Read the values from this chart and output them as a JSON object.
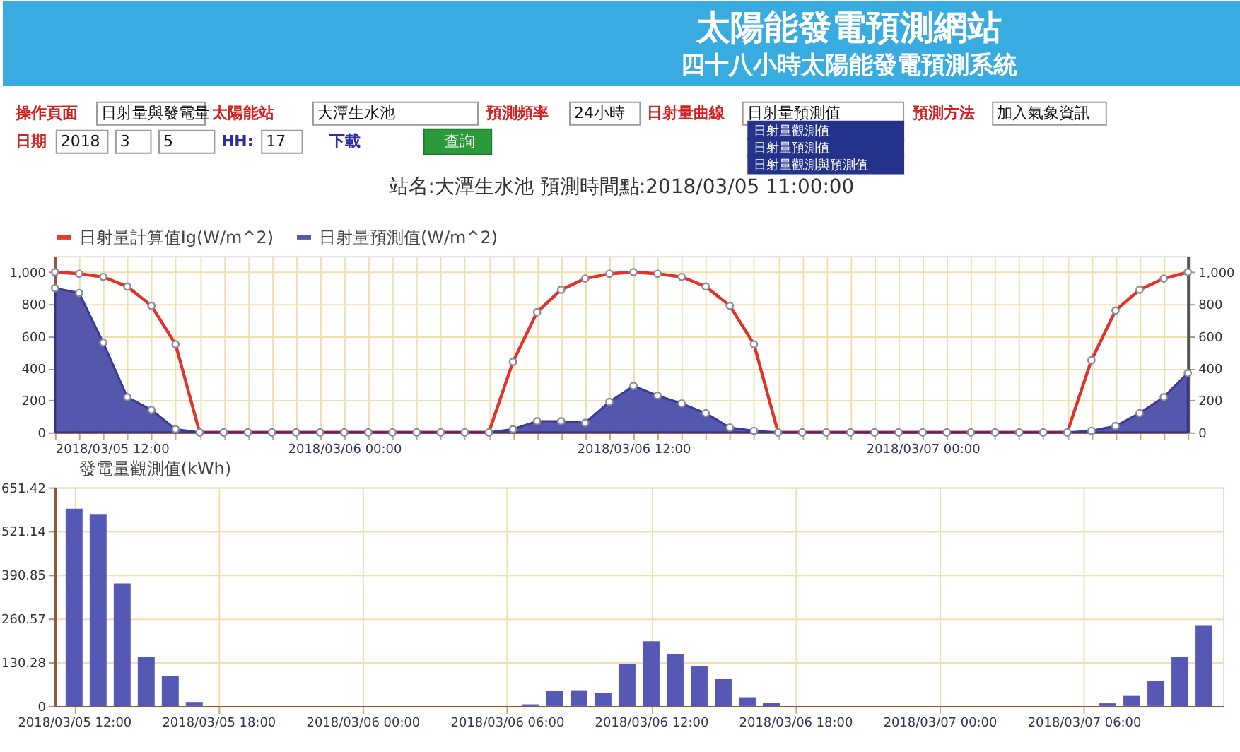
{
  "chart_data": [
    {
      "type": "other",
      "title": "太陽能發電預測網站",
      "subtitle": "四十八小時太陽能發電預測系統",
      "annotations": [
        "操作頁面",
        "日射量與發電量",
        "太陽能站",
        "大潭生水池",
        "預測頻率",
        "24小時",
        "日射量曲線",
        "日射量預測值",
        "預測方法",
        "加入氣象資訊",
        "日期",
        "2018",
        "3",
        "5",
        "HH:",
        "17",
        "下載",
        "查詢",
        "日射量觀測值",
        "日射量預測值",
        "日射量觀測與預測值"
      ]
    },
    {
      "type": "line",
      "title": "站名:大潭生水池 預測時間點:2018/03/05 11:00:00",
      "x": [
        "2018-03-05T12:00",
        "2018-03-05T13:00",
        "2018-03-05T14:00",
        "2018-03-05T15:00",
        "2018-03-05T16:00",
        "2018-03-05T17:00",
        "2018-03-05T18:00",
        "2018-03-05T19:00",
        "2018-03-05T20:00",
        "2018-03-05T21:00",
        "2018-03-05T22:00",
        "2018-03-05T23:00",
        "2018-03-06T00:00",
        "2018-03-06T01:00",
        "2018-03-06T02:00",
        "2018-03-06T03:00",
        "2018-03-06T04:00",
        "2018-03-06T05:00",
        "2018-03-06T06:00",
        "2018-03-06T07:00",
        "2018-03-06T08:00",
        "2018-03-06T09:00",
        "2018-03-06T10:00",
        "2018-03-06T11:00",
        "2018-03-06T12:00",
        "2018-03-06T13:00",
        "2018-03-06T14:00",
        "2018-03-06T15:00",
        "2018-03-06T16:00",
        "2018-03-06T17:00",
        "2018-03-06T18:00",
        "2018-03-06T19:00",
        "2018-03-06T20:00",
        "2018-03-06T21:00",
        "2018-03-06T22:00",
        "2018-03-06T23:00",
        "2018-03-07T00:00",
        "2018-03-07T01:00",
        "2018-03-07T02:00",
        "2018-03-07T03:00",
        "2018-03-07T04:00",
        "2018-03-07T05:00",
        "2018-03-07T06:00",
        "2018-03-07T07:00",
        "2018-03-07T08:00",
        "2018-03-07T09:00",
        "2018-03-07T10:00",
        "2018-03-07T11:00"
      ],
      "series": [
        {
          "name": "日射量計算值Ig(W/m^2)",
          "color": "#e0332b",
          "type": "line",
          "values": [
            1000,
            990,
            970,
            910,
            790,
            550,
            0,
            0,
            0,
            0,
            0,
            0,
            0,
            0,
            0,
            0,
            0,
            0,
            0,
            440,
            750,
            890,
            960,
            990,
            1000,
            990,
            970,
            910,
            790,
            550,
            0,
            0,
            0,
            0,
            0,
            0,
            0,
            0,
            0,
            0,
            0,
            0,
            0,
            450,
            760,
            890,
            960,
            1000
          ]
        },
        {
          "name": "日射量預測值(W/m^2)",
          "color": "#4b4fa8",
          "type": "area",
          "values": [
            900,
            870,
            560,
            220,
            140,
            20,
            0,
            0,
            0,
            0,
            0,
            0,
            0,
            0,
            0,
            0,
            0,
            0,
            0,
            20,
            70,
            70,
            60,
            190,
            290,
            230,
            180,
            120,
            30,
            10,
            0,
            0,
            0,
            0,
            0,
            0,
            0,
            0,
            0,
            0,
            0,
            0,
            0,
            10,
            40,
            120,
            220,
            370
          ]
        }
      ],
      "xlim": [
        "2018-03-05T12:00",
        "2018-03-07T11:00"
      ],
      "xticks": [
        {
          "value": "2018-03-05T12:00",
          "label": "2018/03/05 12:00"
        },
        {
          "value": "2018-03-05T13:00",
          "label": null
        },
        {
          "value": "2018-03-05T14:00",
          "label": null
        },
        {
          "value": "2018-03-05T15:00",
          "label": null
        },
        {
          "value": "2018-03-05T16:00",
          "label": null
        },
        {
          "value": "2018-03-05T17:00",
          "label": null
        },
        {
          "value": "2018-03-05T18:00",
          "label": null
        },
        {
          "value": "2018-03-05T19:00",
          "label": null
        },
        {
          "value": "2018-03-05T20:00",
          "label": null
        },
        {
          "value": "2018-03-05T21:00",
          "label": null
        },
        {
          "value": "2018-03-05T22:00",
          "label": null
        },
        {
          "value": "2018-03-05T23:00",
          "label": null
        },
        {
          "value": "2018-03-06T00:00",
          "label": "2018/03/06 00:00"
        },
        {
          "value": "2018-03-06T01:00",
          "label": null
        },
        {
          "value": "2018-03-06T02:00",
          "label": null
        },
        {
          "value": "2018-03-06T03:00",
          "label": null
        },
        {
          "value": "2018-03-06T04:00",
          "label": null
        },
        {
          "value": "2018-03-06T05:00",
          "label": null
        },
        {
          "value": "2018-03-06T06:00",
          "label": null
        },
        {
          "value": "2018-03-06T07:00",
          "label": null
        },
        {
          "value": "2018-03-06T08:00",
          "label": null
        },
        {
          "value": "2018-03-06T09:00",
          "label": null
        },
        {
          "value": "2018-03-06T10:00",
          "label": null
        },
        {
          "value": "2018-03-06T11:00",
          "label": null
        },
        {
          "value": "2018-03-06T12:00",
          "label": "2018/03/06 12:00"
        },
        {
          "value": "2018-03-06T13:00",
          "label": null
        },
        {
          "value": "2018-03-06T14:00",
          "label": null
        },
        {
          "value": "2018-03-06T15:00",
          "label": null
        },
        {
          "value": "2018-03-06T16:00",
          "label": null
        },
        {
          "value": "2018-03-06T17:00",
          "label": null
        },
        {
          "value": "2018-03-06T18:00",
          "label": null
        },
        {
          "value": "2018-03-06T19:00",
          "label": null
        },
        {
          "value": "2018-03-06T20:00",
          "label": null
        },
        {
          "value": "2018-03-06T21:00",
          "label": null
        },
        {
          "value": "2018-03-06T22:00",
          "label": null
        },
        {
          "value": "2018-03-06T23:00",
          "label": null
        },
        {
          "value": "2018-03-07T00:00",
          "label": "2018/03/07 00:00"
        },
        {
          "value": "2018-03-07T01:00",
          "label": null
        },
        {
          "value": "2018-03-07T02:00",
          "label": null
        },
        {
          "value": "2018-03-07T03:00",
          "label": null
        },
        {
          "value": "2018-03-07T04:00",
          "label": null
        },
        {
          "value": "2018-03-07T05:00",
          "label": null
        },
        {
          "value": "2018-03-07T06:00",
          "label": null
        },
        {
          "value": "2018-03-07T07:00",
          "label": null
        },
        {
          "value": "2018-03-07T08:00",
          "label": null
        },
        {
          "value": "2018-03-07T09:00",
          "label": null
        },
        {
          "value": "2018-03-07T10:00",
          "label": null
        },
        {
          "value": "2018-03-07T11:00",
          "label": null
        }
      ],
      "ylim": [
        0,
        1100
      ],
      "yticks": [
        0,
        200,
        400,
        600,
        800,
        {
          "value": 1000,
          "label": "1,000"
        }
      ],
      "y2lim": [
        0,
        1100
      ],
      "y2ticks": [
        0,
        200,
        400,
        600,
        800,
        {
          "value": 1000,
          "label": "1,000"
        }
      ],
      "grid": true,
      "legend": "top left",
      "marker": "circle",
      "line_style": "solid"
    },
    {
      "type": "bar",
      "x": [
        "2018-03-05T12:00",
        "2018-03-05T13:00",
        "2018-03-05T14:00",
        "2018-03-05T15:00",
        "2018-03-05T16:00",
        "2018-03-05T17:00",
        "2018-03-05T18:00",
        "2018-03-05T19:00",
        "2018-03-05T20:00",
        "2018-03-05T21:00",
        "2018-03-05T22:00",
        "2018-03-05T23:00",
        "2018-03-06T00:00",
        "2018-03-06T01:00",
        "2018-03-06T02:00",
        "2018-03-06T03:00",
        "2018-03-06T04:00",
        "2018-03-06T05:00",
        "2018-03-06T06:00",
        "2018-03-06T07:00",
        "2018-03-06T08:00",
        "2018-03-06T09:00",
        "2018-03-06T10:00",
        "2018-03-06T11:00",
        "2018-03-06T12:00",
        "2018-03-06T13:00",
        "2018-03-06T14:00",
        "2018-03-06T15:00",
        "2018-03-06T16:00",
        "2018-03-06T17:00",
        "2018-03-06T18:00",
        "2018-03-06T19:00",
        "2018-03-06T20:00",
        "2018-03-06T21:00",
        "2018-03-06T22:00",
        "2018-03-06T23:00",
        "2018-03-07T00:00",
        "2018-03-07T01:00",
        "2018-03-07T02:00",
        "2018-03-07T03:00",
        "2018-03-07T04:00",
        "2018-03-07T05:00",
        "2018-03-07T06:00",
        "2018-03-07T07:00",
        "2018-03-07T08:00",
        "2018-03-07T09:00",
        "2018-03-07T10:00",
        "2018-03-07T11:00"
      ],
      "series": [
        {
          "name": "發電量觀測值(kWh)",
          "color": "#5558b5",
          "values": [
            588,
            572,
            365,
            147,
            88,
            12,
            0,
            0,
            0,
            0,
            0,
            0,
            0,
            0,
            0,
            0,
            0,
            0,
            0,
            5,
            45,
            47,
            39,
            126,
            193,
            155,
            119,
            80,
            26,
            9,
            0,
            0,
            0,
            0,
            0,
            0,
            0,
            0,
            0,
            0,
            0,
            0,
            0,
            8,
            30,
            75,
            146,
            239
          ]
        }
      ],
      "xlim": [
        "2018-03-05T11:30",
        "2018-03-07T11:30"
      ],
      "xticks": [
        {
          "value": "2018-03-05T12:00",
          "label": "2018/03/05 12:00"
        },
        {
          "value": "2018-03-05T18:00",
          "label": "2018/03/05 18:00"
        },
        {
          "value": "2018-03-06T00:00",
          "label": "2018/03/06 00:00"
        },
        {
          "value": "2018-03-06T06:00",
          "label": "2018/03/06 06:00"
        },
        {
          "value": "2018-03-06T12:00",
          "label": "2018/03/06 12:00"
        },
        {
          "value": "2018-03-06T18:00",
          "label": "2018/03/06 18:00"
        },
        {
          "value": "2018-03-07T00:00",
          "label": "2018/03/07 00:00"
        },
        {
          "value": "2018-03-07T06:00",
          "label": "2018/03/07 06:00"
        }
      ],
      "ylim": [
        0,
        651.42
      ],
      "yticks": [
        0,
        130.28,
        260.57,
        390.85,
        521.14,
        651.42
      ],
      "grid": true,
      "legend": "top left"
    }
  ]
}
